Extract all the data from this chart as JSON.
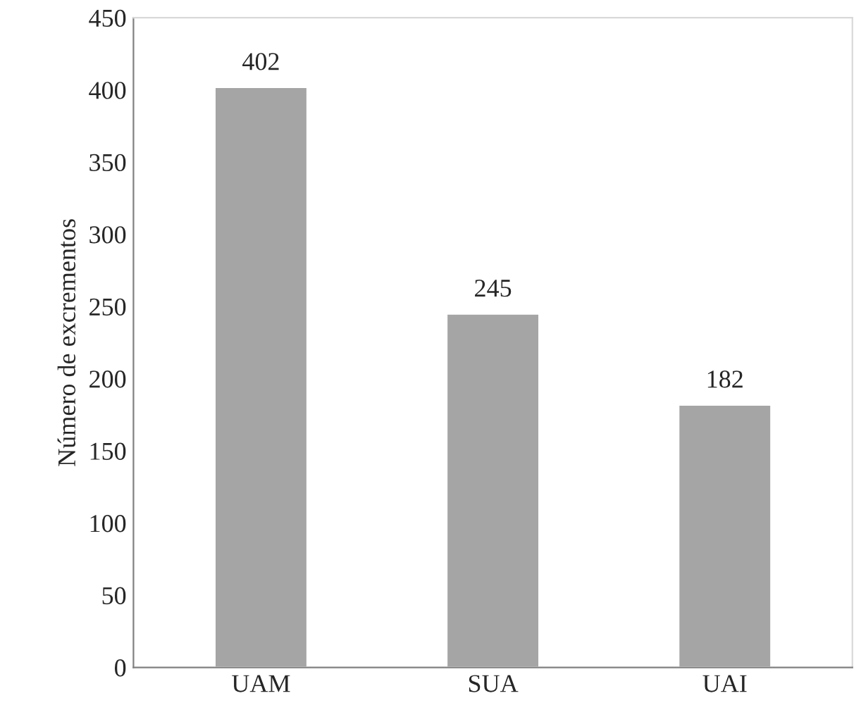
{
  "chart_data": {
    "type": "bar",
    "ylabel": "Número de excrementos",
    "categories": [
      "UAM",
      "SUA",
      "UAI"
    ],
    "values": [
      402,
      245,
      182
    ],
    "color": "#a5a5a5",
    "ylim": [
      0,
      450
    ],
    "yticks": [
      0,
      50,
      100,
      150,
      200,
      250,
      300,
      350,
      400,
      450
    ],
    "data_labels": true,
    "grid": false
  }
}
